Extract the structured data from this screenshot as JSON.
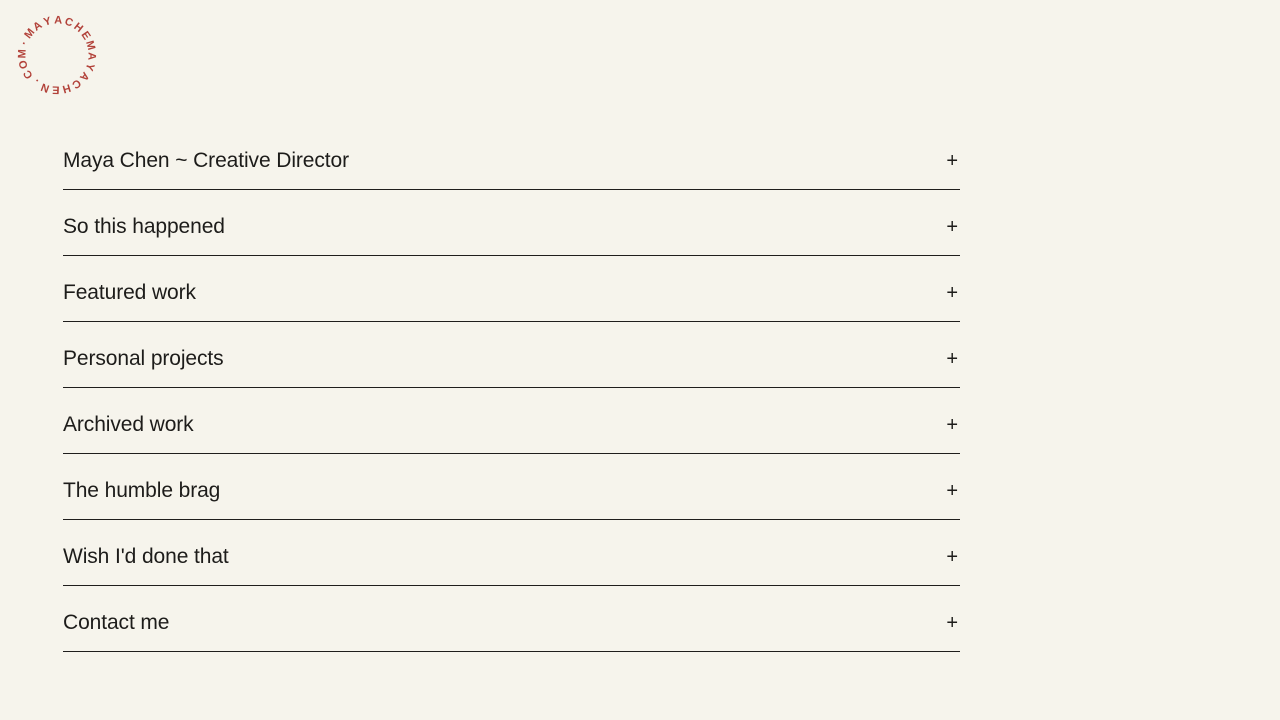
{
  "page": {
    "background_color": "#f6f4ec",
    "text_color": "#1d1c1a"
  },
  "logo": {
    "circular_text": "MAYACHEMAYACHEN.COM",
    "separator": "·",
    "color": "#b2423a"
  },
  "menu": {
    "items": [
      {
        "label": "Maya Chen ~ Creative Director",
        "expand_icon": "+"
      },
      {
        "label": "So this happened",
        "expand_icon": "+"
      },
      {
        "label": "Featured work",
        "expand_icon": "+"
      },
      {
        "label": "Personal projects",
        "expand_icon": "+"
      },
      {
        "label": "Archived work",
        "expand_icon": "+"
      },
      {
        "label": "The humble brag",
        "expand_icon": "+"
      },
      {
        "label": "Wish I'd done that",
        "expand_icon": "+"
      },
      {
        "label": "Contact me",
        "expand_icon": "+"
      }
    ]
  }
}
